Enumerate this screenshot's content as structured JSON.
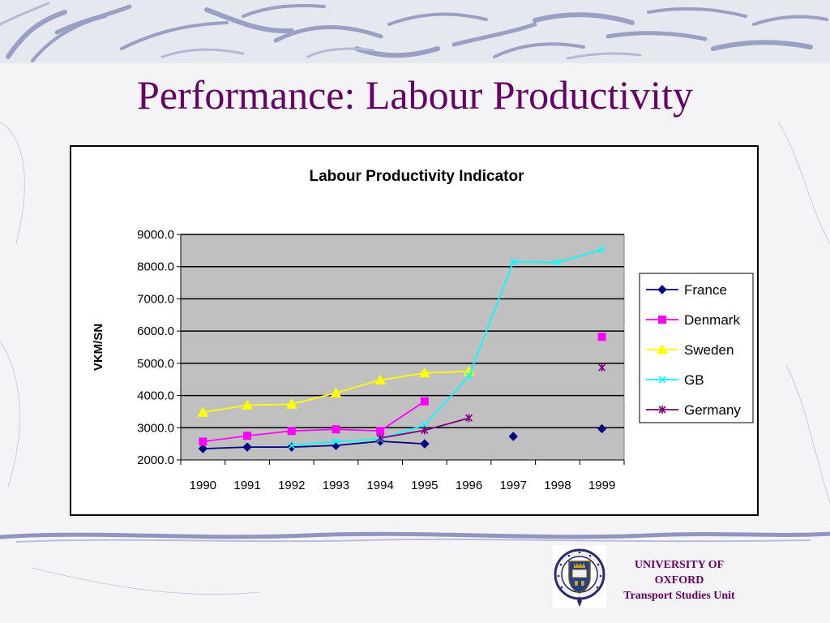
{
  "slide": {
    "title": "Performance: Labour Productivity"
  },
  "footer": {
    "institution_line1": "UNIVERSITY OF",
    "institution_line2": "OXFORD",
    "unit": "Transport Studies Unit",
    "logo_icon": "oxford-university-crest-icon"
  },
  "chart_data": {
    "type": "line",
    "title": "Labour Productivity Indicator",
    "xlabel": "",
    "ylabel": "VKM/SN",
    "ylim": [
      2000,
      9000
    ],
    "yticks": [
      "2000.0",
      "3000.0",
      "4000.0",
      "5000.0",
      "6000.0",
      "7000.0",
      "8000.0",
      "9000.0"
    ],
    "categories": [
      "1990",
      "1991",
      "1992",
      "1993",
      "1994",
      "1995",
      "1996",
      "1997",
      "1998",
      "1999"
    ],
    "grid": "horizontal",
    "plot_background": "#c0c0c0",
    "legend_position": "right",
    "series": [
      {
        "name": "France",
        "color": "#000080",
        "marker": "diamond",
        "values": [
          2350,
          2400,
          2400,
          2450,
          2580,
          2500,
          null,
          2730,
          null,
          2970
        ]
      },
      {
        "name": "Denmark",
        "color": "#ff00ff",
        "marker": "square",
        "values": [
          2570,
          2750,
          2900,
          2950,
          2900,
          3820,
          null,
          null,
          null,
          5820
        ]
      },
      {
        "name": "Sweden",
        "color": "#ffff00",
        "marker": "triangle",
        "values": [
          3480,
          3700,
          3730,
          4080,
          4480,
          4700,
          4750,
          null,
          null,
          null
        ]
      },
      {
        "name": "GB",
        "color": "#00ffff",
        "marker": "x",
        "values": [
          null,
          null,
          2450,
          2570,
          2650,
          3080,
          4600,
          8150,
          8130,
          8530
        ]
      },
      {
        "name": "Germany",
        "color": "#800080",
        "marker": "asterisk",
        "values": [
          null,
          null,
          null,
          null,
          2680,
          2920,
          3300,
          null,
          null,
          4870
        ]
      }
    ]
  }
}
